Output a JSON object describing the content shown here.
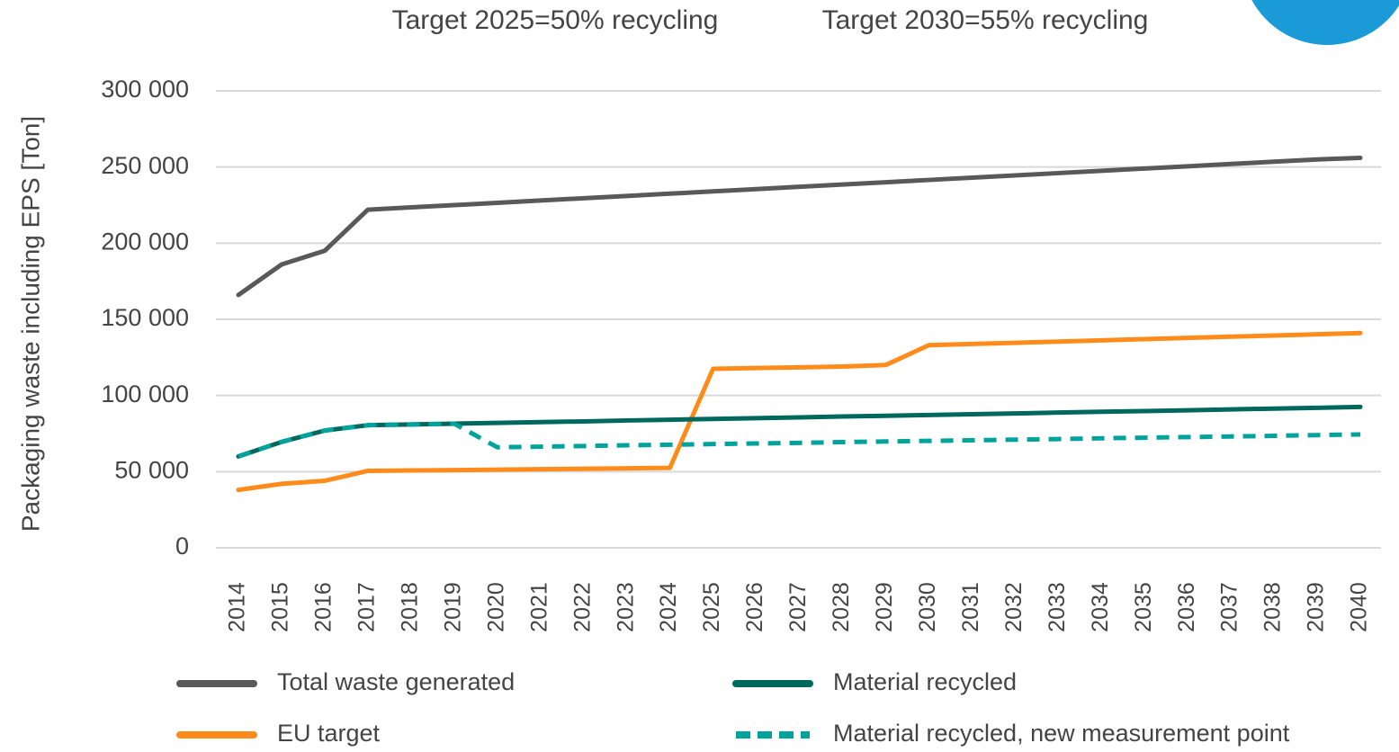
{
  "chart_data": {
    "type": "line",
    "annotations": [
      "Target 2025=50% recycling",
      "Target 2030=55% recycling"
    ],
    "y_label": "Packaging waste including EPS [Ton]",
    "categories": [
      "2014",
      "2015",
      "2016",
      "2017",
      "2018",
      "2019",
      "2020",
      "2021",
      "2022",
      "2023",
      "2024",
      "2025",
      "2026",
      "2027",
      "2028",
      "2029",
      "2030",
      "2031",
      "2032",
      "2033",
      "2034",
      "2035",
      "2036",
      "2037",
      "2038",
      "2039",
      "2040"
    ],
    "series": [
      {
        "name": "Total waste generated",
        "color": "#595959",
        "dash": false,
        "values": [
          166000,
          186000,
          195000,
          222000,
          223500,
          225000,
          226500,
          228000,
          229500,
          231000,
          232500,
          234000,
          235500,
          237000,
          238500,
          240000,
          241500,
          243000,
          244500,
          246000,
          247500,
          249000,
          250500,
          252000,
          253500,
          255000,
          256000
        ]
      },
      {
        "name": "EU target",
        "color": "#ff8c1a",
        "dash": false,
        "values": [
          38000,
          42000,
          44000,
          50500,
          50800,
          51000,
          51300,
          51600,
          51900,
          52200,
          52500,
          117500,
          118000,
          118500,
          119000,
          120000,
          133000,
          133800,
          134600,
          135400,
          136200,
          137000,
          137800,
          138600,
          139400,
          140200,
          141000
        ]
      },
      {
        "name": "Material recycled",
        "color": "#00685c",
        "dash": false,
        "values": [
          60000,
          69500,
          77000,
          80500,
          81000,
          81500,
          82000,
          82500,
          83000,
          83600,
          84100,
          84600,
          85100,
          85600,
          86200,
          86700,
          87200,
          87700,
          88200,
          88800,
          89300,
          89800,
          90300,
          90900,
          91400,
          91900,
          92500
        ]
      },
      {
        "name": "Material recycled, new measurement point",
        "color": "#00a39b",
        "dash": true,
        "values": [
          60000,
          69500,
          77000,
          80500,
          81000,
          81500,
          66000,
          66400,
          66800,
          67300,
          67700,
          68100,
          68500,
          68900,
          69400,
          69800,
          70200,
          70600,
          71000,
          71400,
          71900,
          72300,
          72700,
          73100,
          73500,
          74000,
          74400
        ]
      }
    ],
    "ylim": [
      0,
      300000
    ],
    "yticks": [
      0,
      {
        "value": 50000,
        "label": "50 000"
      },
      {
        "value": 100000,
        "label": "100 000"
      },
      {
        "value": 150000,
        "label": "150 000"
      },
      {
        "value": 200000,
        "label": "200 000"
      },
      {
        "value": 250000,
        "label": "250 000"
      },
      {
        "value": 300000,
        "label": "300 000"
      }
    ],
    "grid": true
  }
}
